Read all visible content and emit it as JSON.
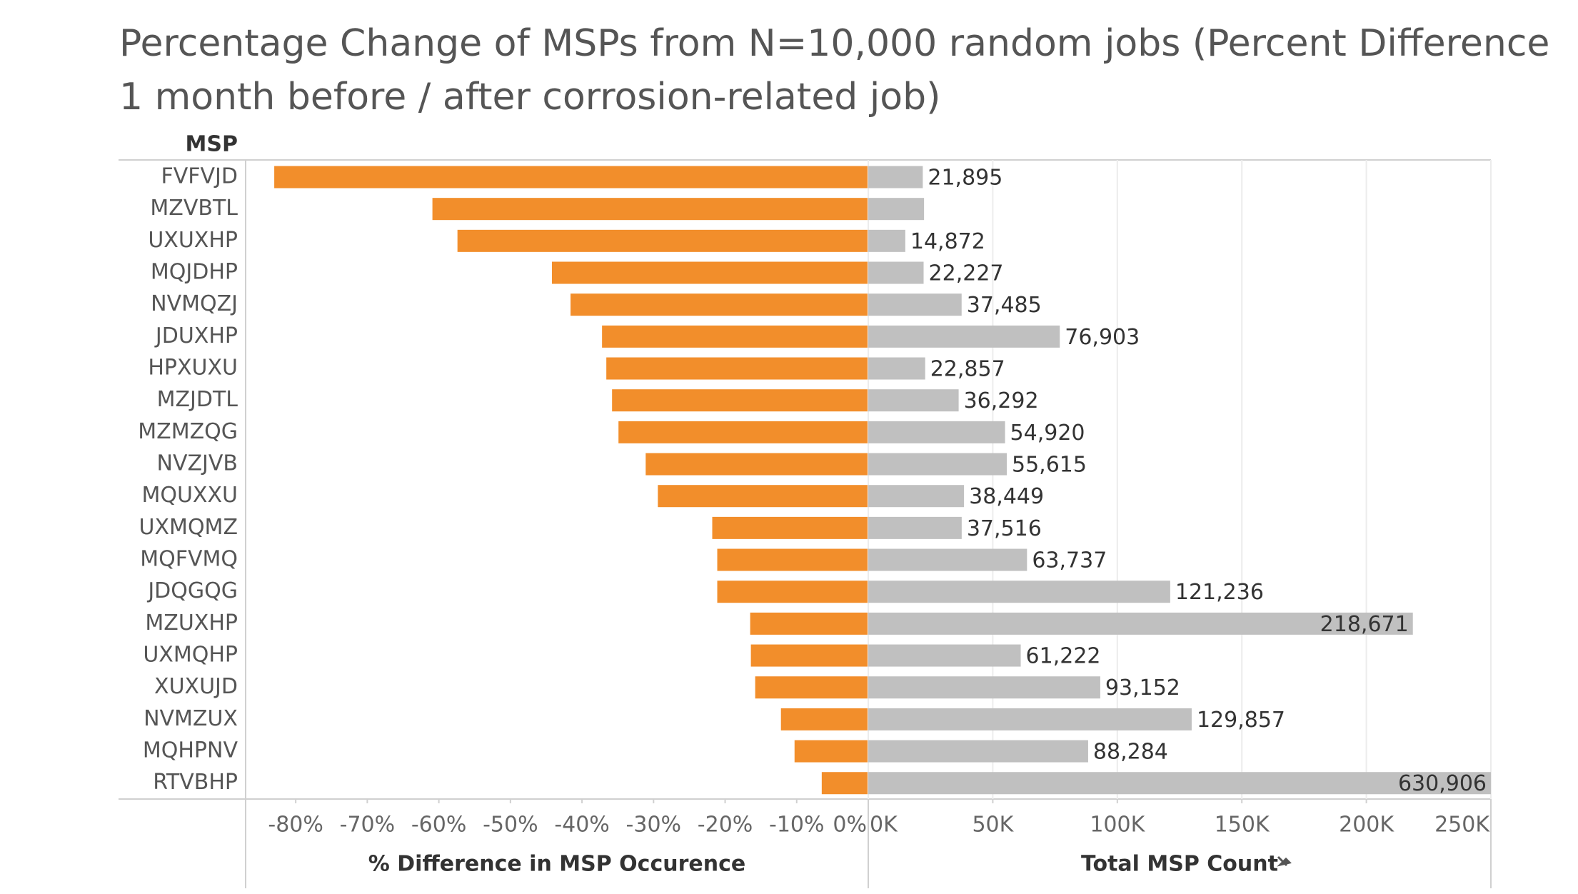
{
  "chart_data": [
    {
      "type": "bar",
      "orientation": "horizontal",
      "title": "Percentage Change of MSPs from N=10,000 random jobs (Percent Difference 1 month before / after corrosion-related job)",
      "y_label": "MSP",
      "x_label": "% Difference in MSP Occurence",
      "categories": [
        "FVFVJD",
        "MZVBTL",
        "UXUXHP",
        "MQJDHP",
        "NVMQZJ",
        "JDUXHP",
        "HPXUXU",
        "MZJDTL",
        "MZMZQG",
        "NVZJVB",
        "MQUXXU",
        "UXMQMZ",
        "MQFVMQ",
        "JDQGQG",
        "MZUXHP",
        "UXMQHP",
        "XUXUJD",
        "NVMZUX",
        "MQHPNV",
        "RTVBHP"
      ],
      "values": [
        -83,
        -60.9,
        -57.4,
        -44.2,
        -41.6,
        -37.2,
        -36.6,
        -35.8,
        -34.9,
        -31.1,
        -29.4,
        -21.8,
        -21.1,
        -21.1,
        -16.5,
        -16.4,
        -15.8,
        -12.2,
        -10.3,
        -6.5
      ],
      "color": "#f28e2b",
      "xlim": [
        -87,
        0
      ],
      "xticks": [
        {
          "value": -80,
          "label": "-80%"
        },
        {
          "value": -70,
          "label": "-70%"
        },
        {
          "value": -60,
          "label": "-60%"
        },
        {
          "value": -50,
          "label": "-50%"
        },
        {
          "value": -40,
          "label": "-40%"
        },
        {
          "value": -30,
          "label": "-30%"
        },
        {
          "value": -20,
          "label": "-20%"
        },
        {
          "value": -10,
          "label": "-10%"
        },
        {
          "value": 0,
          "label": "0%"
        }
      ],
      "grid": false
    },
    {
      "type": "bar",
      "orientation": "horizontal",
      "x_label": "Total MSP Count",
      "values": [
        21895,
        22400,
        14872,
        22227,
        37485,
        76903,
        22857,
        36292,
        54920,
        55615,
        38449,
        37516,
        63737,
        121236,
        218671,
        61222,
        93152,
        129857,
        88284,
        630906
      ],
      "value_labels": [
        "21,895",
        null,
        "14,872",
        "22,227",
        "37,485",
        "76,903",
        "22,857",
        "36,292",
        "54,920",
        "55,615",
        "38,449",
        "37,516",
        "63,737",
        "121,236",
        "218,671",
        "61,222",
        "93,152",
        "129,857",
        "88,284",
        "630,906"
      ],
      "color": "#c0c0c0",
      "xlim": [
        0,
        250000
      ],
      "xticks": [
        {
          "value": 0,
          "label": "0K"
        },
        {
          "value": 50000,
          "label": "50K"
        },
        {
          "value": 100000,
          "label": "100K"
        },
        {
          "value": 150000,
          "label": "150K"
        },
        {
          "value": 200000,
          "label": "200K"
        },
        {
          "value": 250000,
          "label": "250K"
        }
      ],
      "grid": true
    }
  ]
}
